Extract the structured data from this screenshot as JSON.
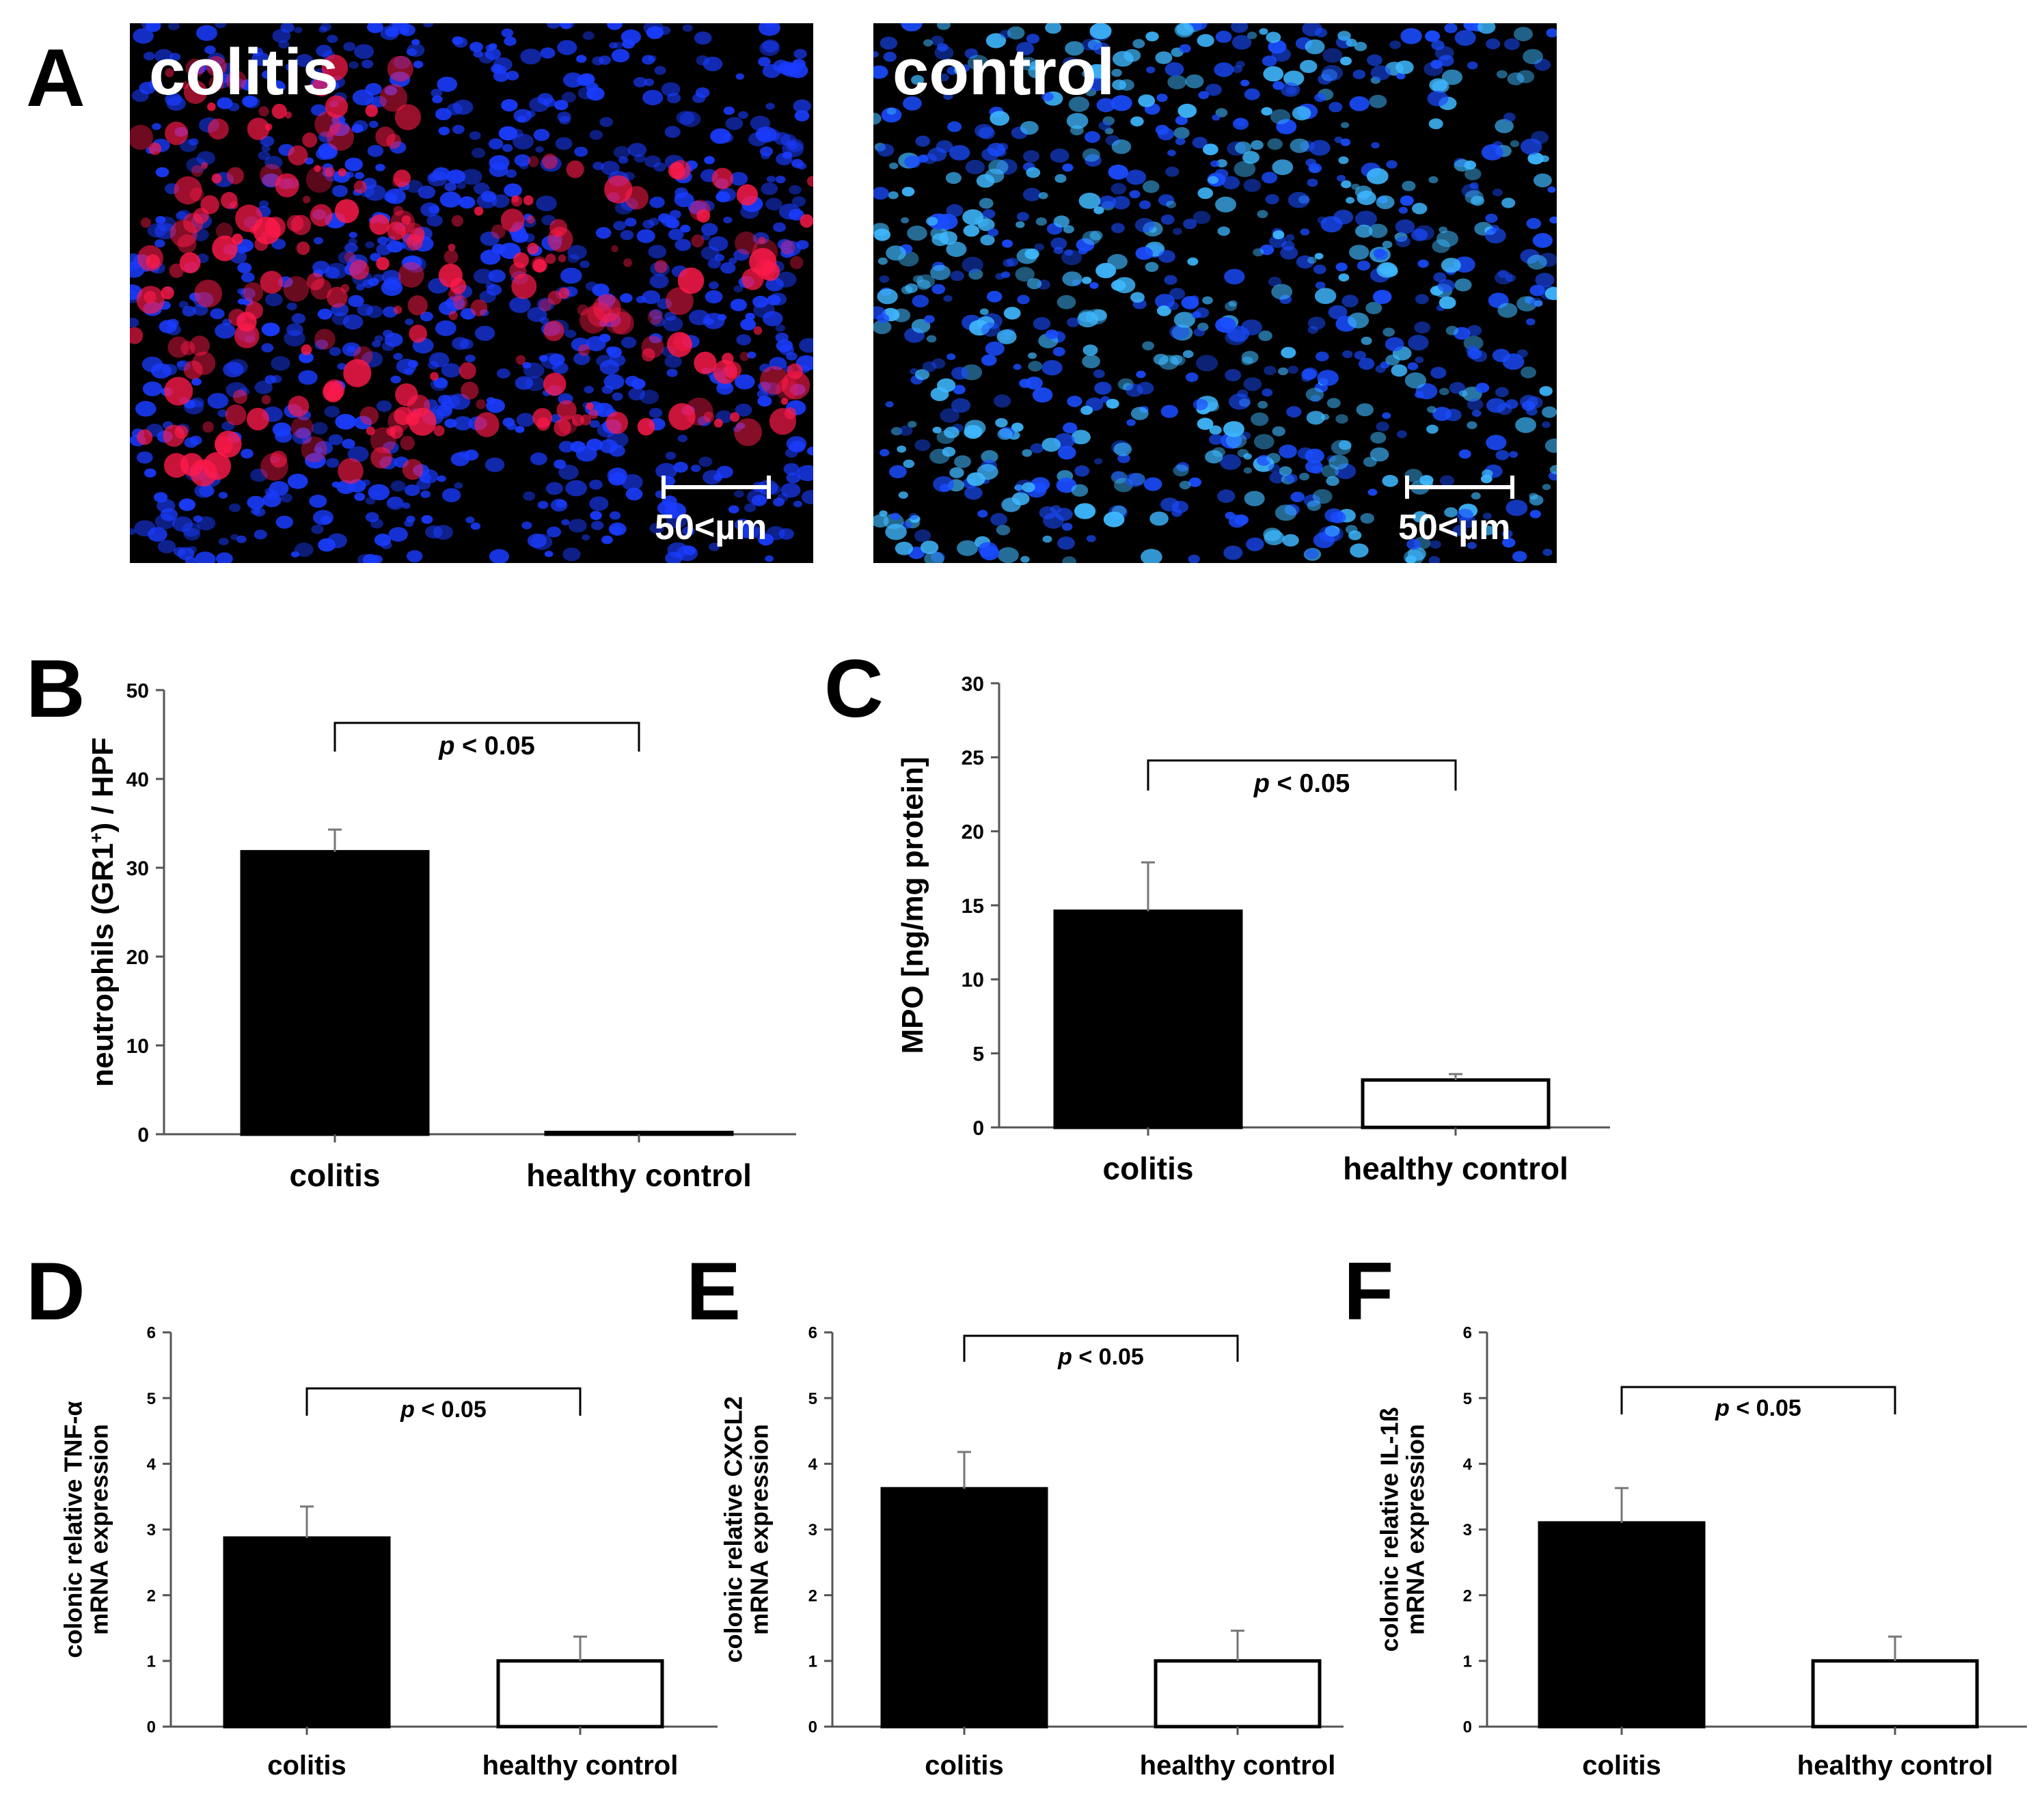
{
  "panel_a": {
    "letter": "A",
    "images": [
      {
        "label": "colitis",
        "scale": "50<µm",
        "stain_colors": [
          "#1a3cff",
          "#ff1a4a"
        ]
      },
      {
        "label": "control",
        "scale": "50<µm",
        "stain_colors": [
          "#1a4cff",
          "#3fb8ff"
        ]
      }
    ]
  },
  "chart_data": [
    {
      "panel": "B",
      "type": "bar",
      "categories": [
        "colitis",
        "healthy control"
      ],
      "values": [
        31.8,
        0.2
      ],
      "errors": [
        2.5,
        0
      ],
      "bar_colors": [
        "#000000",
        "#ffffff"
      ],
      "xlabel": "",
      "ylabel": "neutrophils (GR1+) / HPF",
      "ylim": [
        0,
        50
      ],
      "yticks": [
        "0",
        "10",
        "20",
        "30",
        "40",
        "50"
      ],
      "significance": "p < 0.05",
      "grid": false
    },
    {
      "panel": "C",
      "type": "bar",
      "categories": [
        "colitis",
        "healthy control"
      ],
      "values": [
        14.6,
        3.2
      ],
      "errors": [
        3.3,
        0.4
      ],
      "bar_colors": [
        "#000000",
        "#ffffff"
      ],
      "xlabel": "",
      "ylabel": "MPO [ng/mg protein]",
      "ylim": [
        0,
        30
      ],
      "yticks": [
        "0",
        "5",
        "10",
        "15",
        "20",
        "25",
        "30"
      ],
      "significance": "p < 0.05",
      "grid": false
    },
    {
      "panel": "D",
      "type": "bar",
      "categories": [
        "colitis",
        "healthy control"
      ],
      "values": [
        2.87,
        1.0
      ],
      "errors": [
        0.48,
        0.37
      ],
      "bar_colors": [
        "#000000",
        "#ffffff"
      ],
      "xlabel": "",
      "ylabel": [
        "colonic relative TNF-α",
        "mRNA expression"
      ],
      "ylim": [
        0,
        6
      ],
      "yticks": [
        "0",
        "1",
        "2",
        "3",
        "4",
        "5",
        "6"
      ],
      "significance": "p < 0.05",
      "grid": false
    },
    {
      "panel": "E",
      "type": "bar",
      "categories": [
        "colitis",
        "healthy control"
      ],
      "values": [
        3.62,
        1.0
      ],
      "errors": [
        0.56,
        0.46
      ],
      "bar_colors": [
        "#000000",
        "#ffffff"
      ],
      "xlabel": "",
      "ylabel": [
        "colonic relative CXCL2",
        "mRNA expression"
      ],
      "ylim": [
        0,
        6
      ],
      "yticks": [
        "0",
        "1",
        "2",
        "3",
        "4",
        "5",
        "6"
      ],
      "significance": "p < 0.05",
      "grid": false
    },
    {
      "panel": "F",
      "type": "bar",
      "categories": [
        "colitis",
        "healthy control"
      ],
      "values": [
        3.1,
        1.0
      ],
      "errors": [
        0.53,
        0.37
      ],
      "bar_colors": [
        "#000000",
        "#ffffff"
      ],
      "xlabel": "",
      "ylabel": [
        "colonic relative IL-1ß",
        "mRNA expression"
      ],
      "ylim": [
        0,
        6
      ],
      "yticks": [
        "0",
        "1",
        "2",
        "3",
        "4",
        "5",
        "6"
      ],
      "significance": "p < 0.05",
      "grid": false
    }
  ]
}
